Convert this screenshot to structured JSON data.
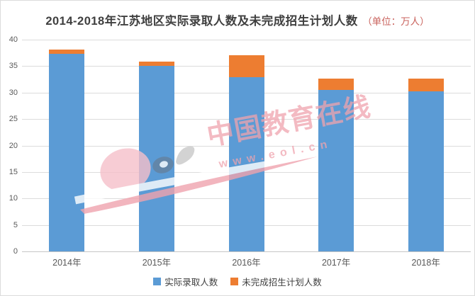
{
  "title": {
    "main": "2014-2018年江苏地区实际录取人数及未完成招生计划人数",
    "unit": "（单位：万人）"
  },
  "chart_data": {
    "type": "bar",
    "stacked": true,
    "title": "2014-2018年江苏地区实际录取人数及未完成招生计划人数（单位：万人）",
    "categories": [
      "2014年",
      "2015年",
      "2016年",
      "2017年",
      "2018年"
    ],
    "series": [
      {
        "name": "实际录取人数",
        "color": "#5B9BD5",
        "values": [
          37.3,
          35.1,
          32.9,
          30.5,
          30.2
        ]
      },
      {
        "name": "未完成招生计划人数",
        "color": "#ED7D31",
        "values": [
          0.8,
          0.7,
          4.2,
          2.2,
          2.5
        ]
      }
    ],
    "xlabel": "",
    "ylabel": "",
    "unit": "万人",
    "ylim": [
      0,
      40
    ],
    "yticks": [
      0,
      5,
      10,
      15,
      20,
      25,
      30,
      35,
      40
    ],
    "grid": true,
    "legend_position": "bottom"
  },
  "watermark": {
    "cn_text": "中国教育在线",
    "url_text": "www.eol.cn",
    "logo_name": "eol-logo"
  },
  "colors": {
    "bar_blue": "#5B9BD5",
    "bar_orange": "#ED7D31",
    "gridline": "#DCDCDC",
    "axis_line": "#C6C6C6",
    "tick_label": "#595959",
    "title_main": "#3F3F3F",
    "title_unit": "#C9625C",
    "legend_label": "#404040",
    "watermark_pink": "#F0A3AE",
    "watermark_pink_light": "#F6C0CA",
    "watermark_slate": "#64819F",
    "watermark_gray": "#C9C9C9"
  }
}
